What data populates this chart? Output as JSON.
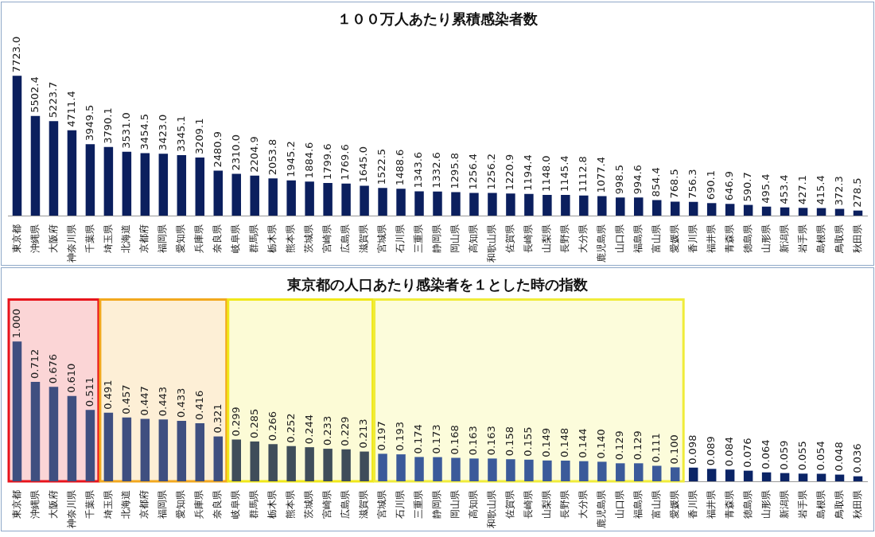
{
  "chart_data": [
    {
      "type": "bar",
      "title": "１００万人あたり累積感染者数",
      "categories": [
        "東京都",
        "沖縄県",
        "大阪府",
        "神奈川県",
        "千葉県",
        "埼玉県",
        "北海道",
        "京都府",
        "福岡県",
        "愛知県",
        "兵庫県",
        "奈良県",
        "岐阜県",
        "群馬県",
        "栃木県",
        "熊本県",
        "茨城県",
        "宮崎県",
        "広島県",
        "滋賀県",
        "宮城県",
        "石川県",
        "三重県",
        "静岡県",
        "岡山県",
        "高知県",
        "和歌山県",
        "佐賀県",
        "長崎県",
        "山梨県",
        "長野県",
        "大分県",
        "鹿児島県",
        "山口県",
        "福島県",
        "富山県",
        "愛媛県",
        "香川県",
        "福井県",
        "青森県",
        "徳島県",
        "山形県",
        "新潟県",
        "岩手県",
        "島根県",
        "鳥取県",
        "秋田県"
      ],
      "values": [
        7723.0,
        5502.4,
        5223.7,
        4711.4,
        3949.5,
        3790.1,
        3531.0,
        3454.5,
        3423.0,
        3345.1,
        3209.1,
        2480.9,
        2310.0,
        2204.9,
        2053.8,
        1945.2,
        1884.6,
        1799.6,
        1769.6,
        1645.0,
        1522.5,
        1488.6,
        1343.6,
        1332.6,
        1295.8,
        1256.4,
        1256.2,
        1220.9,
        1194.4,
        1148.0,
        1145.4,
        1112.8,
        1077.4,
        998.5,
        994.6,
        854.4,
        768.5,
        756.3,
        690.1,
        646.9,
        590.7,
        495.4,
        453.4,
        427.1,
        415.4,
        372.3,
        278.5
      ],
      "value_labels": [
        "7723.0",
        "5502.4",
        "5223.7",
        "4711.4",
        "3949.5",
        "3790.1",
        "3531.0",
        "3454.5",
        "3423.0",
        "3345.1",
        "3209.1",
        "2480.9",
        "2310.0",
        "2204.9",
        "2053.8",
        "1945.2",
        "1884.6",
        "1799.6",
        "1769.6",
        "1645.0",
        "1522.5",
        "1488.6",
        "1343.6",
        "1332.6",
        "1295.8",
        "1256.4",
        "1256.2",
        "1220.9",
        "1194.4",
        "1148.0",
        "1145.4",
        "1112.8",
        "1077.4",
        "998.5",
        "994.6",
        "854.4",
        "768.5",
        "756.3",
        "690.1",
        "646.9",
        "590.7",
        "495.4",
        "453.4",
        "427.1",
        "415.4",
        "372.3",
        "278.5"
      ],
      "color": "#0b1f5e",
      "legend": false,
      "grid": false
    },
    {
      "type": "bar",
      "title": "東京都の人口あたり感染者を１とした時の指数",
      "categories": [
        "東京都",
        "沖縄県",
        "大阪府",
        "神奈川県",
        "千葉県",
        "埼玉県",
        "北海道",
        "京都府",
        "福岡県",
        "愛知県",
        "兵庫県",
        "奈良県",
        "岐阜県",
        "群馬県",
        "栃木県",
        "熊本県",
        "茨城県",
        "宮崎県",
        "広島県",
        "滋賀県",
        "宮城県",
        "石川県",
        "三重県",
        "静岡県",
        "岡山県",
        "高知県",
        "和歌山県",
        "佐賀県",
        "長崎県",
        "山梨県",
        "長野県",
        "大分県",
        "鹿児島県",
        "山口県",
        "福島県",
        "富山県",
        "愛媛県",
        "香川県",
        "福井県",
        "青森県",
        "徳島県",
        "山形県",
        "新潟県",
        "岩手県",
        "島根県",
        "鳥取県",
        "秋田県"
      ],
      "values": [
        1.0,
        0.712,
        0.676,
        0.61,
        0.511,
        0.491,
        0.457,
        0.447,
        0.443,
        0.433,
        0.416,
        0.321,
        0.299,
        0.285,
        0.266,
        0.252,
        0.244,
        0.233,
        0.229,
        0.213,
        0.197,
        0.193,
        0.174,
        0.173,
        0.168,
        0.163,
        0.163,
        0.158,
        0.155,
        0.149,
        0.148,
        0.144,
        0.14,
        0.129,
        0.129,
        0.111,
        0.1,
        0.098,
        0.089,
        0.084,
        0.076,
        0.064,
        0.059,
        0.055,
        0.054,
        0.048,
        0.036
      ],
      "value_labels": [
        "1.000",
        "0.712",
        "0.676",
        "0.610",
        "0.511",
        "0.491",
        "0.457",
        "0.447",
        "0.443",
        "0.433",
        "0.416",
        "0.321",
        "0.299",
        "0.285",
        "0.266",
        "0.252",
        "0.244",
        "0.233",
        "0.229",
        "0.213",
        "0.197",
        "0.193",
        "0.174",
        "0.173",
        "0.168",
        "0.163",
        "0.163",
        "0.158",
        "0.155",
        "0.149",
        "0.148",
        "0.144",
        "0.140",
        "0.129",
        "0.129",
        "0.111",
        "0.100",
        "0.098",
        "0.089",
        "0.084",
        "0.076",
        "0.064",
        "0.059",
        "0.055",
        "0.054",
        "0.048",
        "0.036"
      ],
      "colors": [
        "#3f4f80",
        "#3f4f80",
        "#3f4f80",
        "#3f4f80",
        "#3f4f80",
        "#3f4f80",
        "#3f4f80",
        "#3f4f80",
        "#3f4f80",
        "#3f4f80",
        "#3f4f80",
        "#3f4f80",
        "#3f4d5a",
        "#3f4d5a",
        "#3f4d5a",
        "#3f4d5a",
        "#3f4d5a",
        "#3f4d5a",
        "#3f4d5a",
        "#3f4d5a",
        "#3b5a9a",
        "#3b5a9a",
        "#3b5a9a",
        "#3b5a9a",
        "#3b5a9a",
        "#3b5a9a",
        "#3b5a9a",
        "#3b5a9a",
        "#3b5a9a",
        "#3b5a9a",
        "#3b5a9a",
        "#3b5a9a",
        "#3b5a9a",
        "#3b5a9a",
        "#3b5a9a",
        "#3b5a9a",
        "#3b5a9a",
        "#0b2466",
        "#0b2466",
        "#0b2466",
        "#0b2466",
        "#0b2466",
        "#0b2466",
        "#0b2466",
        "#0b2466",
        "#0b2466",
        "#0b2466"
      ],
      "bands": [
        {
          "axis": "x",
          "from": "東京都",
          "to": "千葉県",
          "color": "#e8141c"
        },
        {
          "axis": "x",
          "from": "埼玉県",
          "to": "奈良県",
          "color": "#f2a81e"
        },
        {
          "axis": "x",
          "from": "岐阜県",
          "to": "滋賀県",
          "color": "#f0e81a"
        },
        {
          "axis": "x",
          "from": "宮城県",
          "to": "愛媛県",
          "color": "#f0ec3a"
        }
      ],
      "legend": false,
      "grid": false
    }
  ]
}
